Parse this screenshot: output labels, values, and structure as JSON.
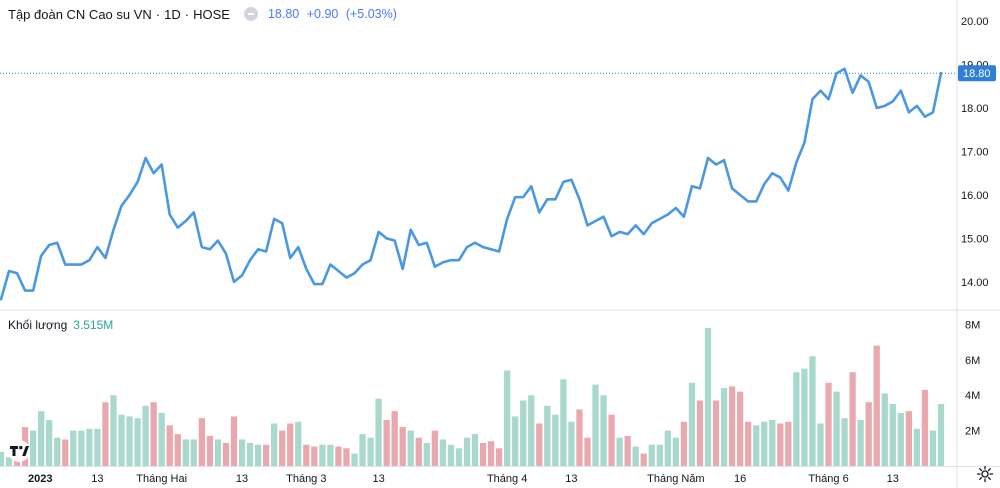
{
  "header": {
    "symbol": "Tập đoàn CN Cao su VN",
    "interval": "1D",
    "exchange": "HOSE",
    "last": "18.80",
    "change": "+0.90",
    "change_pct": "(+5.03%)"
  },
  "volume_pane": {
    "label": "Khối lượng",
    "value": "3.515M"
  },
  "colors": {
    "line": "#4a97e3",
    "up_volume": "#a9d8cc",
    "down_volume": "#e8a8ad",
    "last_price_tag": "#2f7fd6",
    "grid": "#f0f3fa",
    "axis_text": "#131722"
  },
  "icons": {
    "logo": "tradingview-logo-icon",
    "settings": "gear-icon",
    "visibility": "eye-icon"
  },
  "chart_data": [
    {
      "type": "line",
      "title": "Tập đoàn CN Cao su VN · 1D · HOSE",
      "ylabel": "",
      "ylim": [
        13.4,
        20.3
      ],
      "y_ticks": [
        "14.00",
        "15.00",
        "16.00",
        "17.00",
        "18.00",
        "19.00",
        "20.00"
      ],
      "x_ticks": [
        "2023",
        "13",
        "Tháng Hai",
        "13",
        "Tháng 3",
        "13",
        "Tháng 4",
        "13",
        "Tháng Năm",
        "16",
        "Tháng 6",
        "13"
      ],
      "last_price_label": "18.80",
      "series": [
        {
          "name": "",
          "values": [
            13.6,
            14.25,
            14.2,
            13.8,
            13.8,
            14.6,
            14.85,
            14.9,
            14.4,
            14.4,
            14.4,
            14.5,
            14.8,
            14.55,
            15.2,
            15.75,
            16.0,
            16.3,
            16.85,
            16.5,
            16.7,
            15.55,
            15.25,
            15.4,
            15.6,
            14.8,
            14.75,
            14.95,
            14.65,
            14.0,
            14.15,
            14.5,
            14.75,
            14.7,
            15.45,
            15.35,
            14.55,
            14.8,
            14.3,
            13.95,
            13.95,
            14.4,
            14.25,
            14.1,
            14.2,
            14.4,
            14.5,
            15.15,
            15.0,
            14.95,
            14.3,
            15.2,
            14.85,
            14.9,
            14.35,
            14.45,
            14.5,
            14.5,
            14.8,
            14.9,
            14.8,
            14.75,
            14.7,
            15.45,
            15.95,
            15.95,
            16.2,
            15.6,
            15.9,
            15.9,
            16.3,
            16.35,
            15.9,
            15.3,
            15.4,
            15.5,
            15.05,
            15.15,
            15.1,
            15.3,
            15.1,
            15.35,
            15.45,
            15.55,
            15.7,
            15.5,
            16.2,
            16.15,
            16.85,
            16.7,
            16.8,
            16.15,
            16.0,
            15.85,
            15.85,
            16.25,
            16.5,
            16.4,
            16.1,
            16.75,
            17.2,
            18.2,
            18.4,
            18.2,
            18.8,
            18.9,
            18.35,
            18.75,
            18.6,
            18.0,
            18.05,
            18.15,
            18.4,
            17.9,
            18.05,
            17.8,
            17.9,
            18.8
          ]
        }
      ]
    },
    {
      "type": "bar",
      "title": "Khối lượng",
      "ylim": [
        0,
        8700000
      ],
      "y_ticks": [
        "2M",
        "4M",
        "6M",
        "8M"
      ],
      "series": [
        {
          "name": "Khối lượng",
          "values": [
            800000,
            500000,
            700000,
            2200000,
            2000000,
            3100000,
            2600000,
            1600000,
            1500000,
            2000000,
            2000000,
            2100000,
            2100000,
            3600000,
            4000000,
            2900000,
            2800000,
            2700000,
            3400000,
            3600000,
            3000000,
            2300000,
            1800000,
            1500000,
            1500000,
            2700000,
            1700000,
            1500000,
            1300000,
            2800000,
            1500000,
            1300000,
            1200000,
            1200000,
            2400000,
            2000000,
            2400000,
            2500000,
            1200000,
            1100000,
            1200000,
            1200000,
            1100000,
            1000000,
            700000,
            1800000,
            1600000,
            3800000,
            2600000,
            3100000,
            2200000,
            2000000,
            1600000,
            1300000,
            2000000,
            1500000,
            1200000,
            1000000,
            1600000,
            1800000,
            1300000,
            1400000,
            1000000,
            5400000,
            2800000,
            3700000,
            4000000,
            2400000,
            3400000,
            2900000,
            4900000,
            2500000,
            3200000,
            1600000,
            4600000,
            4000000,
            2900000,
            1600000,
            1700000,
            1100000,
            700000,
            1200000,
            1200000,
            2000000,
            1600000,
            2500000,
            4700000,
            3700000,
            7800000,
            3700000,
            4400000,
            4500000,
            4200000,
            2500000,
            2300000,
            2500000,
            2600000,
            2400000,
            2500000,
            5300000,
            5500000,
            6200000,
            2400000,
            4700000,
            4200000,
            2700000,
            5300000,
            2600000,
            3600000,
            6800000,
            4100000,
            3500000,
            3000000,
            3100000,
            2100000,
            4300000,
            2000000,
            3500000
          ]
        }
      ]
    }
  ]
}
